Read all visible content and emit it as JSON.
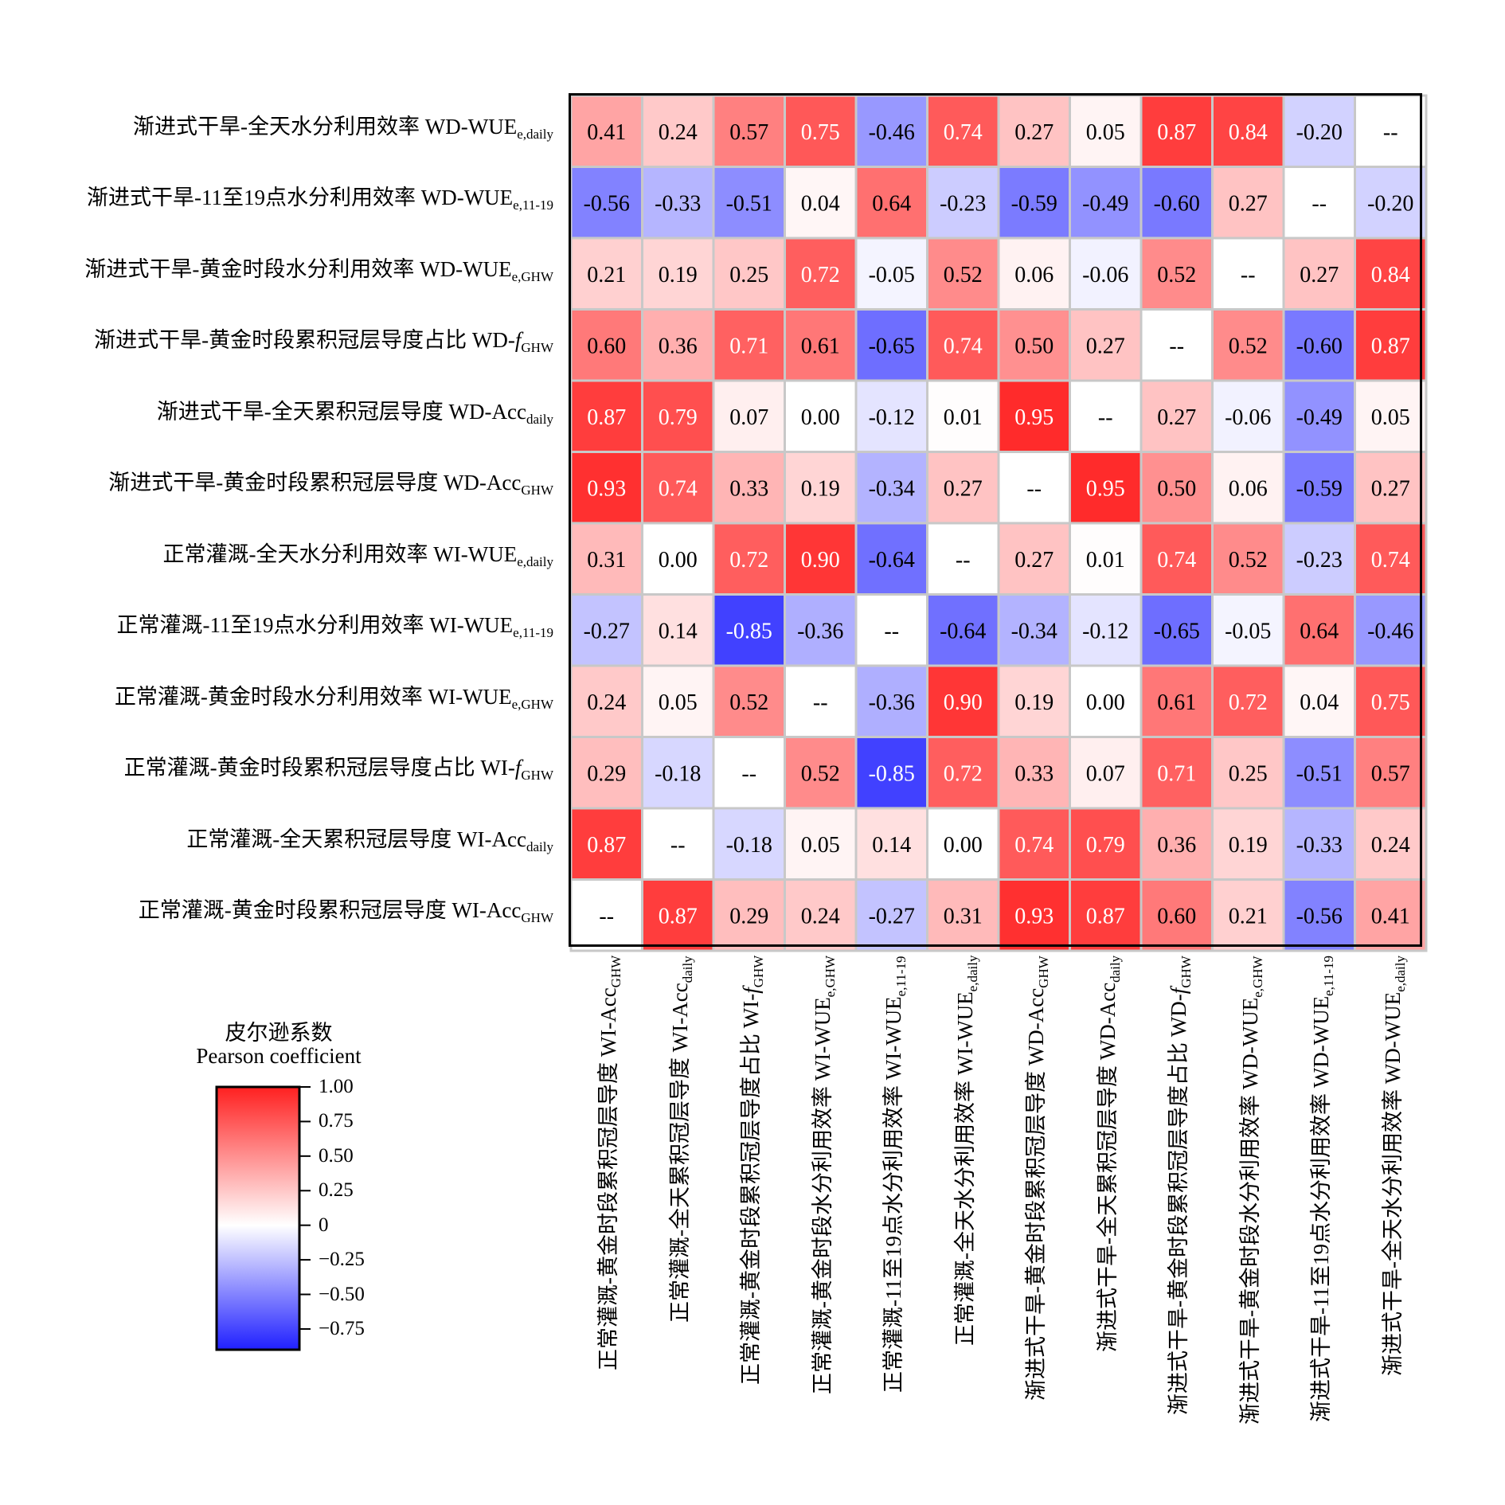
{
  "chart_data": {
    "type": "heatmap",
    "colorbar": {
      "title_cn": "皮尔逊系数",
      "title_en": "Pearson coefficient",
      "range": [
        -0.9,
        1.0
      ],
      "colors": {
        "negative": "#2020ff",
        "zero": "#ffffff",
        "positive": "#ff2020"
      },
      "ticks": [
        {
          "value": 1.0,
          "label": "1.00"
        },
        {
          "value": 0.75,
          "label": "0.75"
        },
        {
          "value": 0.5,
          "label": "0.50"
        },
        {
          "value": 0.25,
          "label": "0.25"
        },
        {
          "value": 0.0,
          "label": "0"
        },
        {
          "value": -0.25,
          "label": "−0.25"
        },
        {
          "value": -0.5,
          "label": "−0.50"
        },
        {
          "value": -0.75,
          "label": "−0.75"
        }
      ]
    },
    "rows": [
      {
        "cn": "渐进式干旱-全天水分利用效率 WD-",
        "main": "WUE",
        "sub": "e,daily"
      },
      {
        "cn": "渐进式干旱-11至19点水分利用效率 WD-",
        "main": "WUE",
        "sub": "e,11-19"
      },
      {
        "cn": "渐进式干旱-黄金时段水分利用效率 WD-",
        "main": "WUE",
        "sub": "e,GHW"
      },
      {
        "cn": "渐进式干旱-黄金时段累积冠层导度占比 WD-",
        "main": "f",
        "italic": true,
        "sub": "GHW"
      },
      {
        "cn": "渐进式干旱-全天累积冠层导度 WD-",
        "main": "Acc",
        "sub": "daily"
      },
      {
        "cn": "渐进式干旱-黄金时段累积冠层导度 WD-",
        "main": "Acc",
        "sub": "GHW"
      },
      {
        "cn": "正常灌溉-全天水分利用效率 WI-",
        "main": "WUE",
        "sub": "e,daily"
      },
      {
        "cn": "正常灌溉-11至19点水分利用效率 WI-",
        "main": "WUE",
        "sub": "e,11-19"
      },
      {
        "cn": "正常灌溉-黄金时段水分利用效率 WI-",
        "main": "WUE",
        "sub": "e,GHW"
      },
      {
        "cn": "正常灌溉-黄金时段累积冠层导度占比 WI-",
        "main": "f",
        "italic": true,
        "sub": "GHW"
      },
      {
        "cn": "正常灌溉-全天累积冠层导度 WI-",
        "main": "Acc",
        "sub": "daily"
      },
      {
        "cn": "正常灌溉-黄金时段累积冠层导度 WI-",
        "main": "Acc",
        "sub": "GHW"
      }
    ],
    "columns": [
      {
        "cn": "正常灌溉-黄金时段累积冠层导度 WI-",
        "main": "Acc",
        "sub": "GHW"
      },
      {
        "cn": "正常灌溉-全天累积冠层导度 WI-",
        "main": "Acc",
        "sub": "daily"
      },
      {
        "cn": "正常灌溉-黄金时段累积冠层导度占比 WI-",
        "main": "f",
        "italic": true,
        "sub": "GHW"
      },
      {
        "cn": "正常灌溉-黄金时段水分利用效率 WI-",
        "main": "WUE",
        "sub": "e,GHW"
      },
      {
        "cn": "正常灌溉-11至19点水分利用效率 WI-",
        "main": "WUE",
        "sub": "e,11-19"
      },
      {
        "cn": "正常灌溉-全天水分利用效率 WI-",
        "main": "WUE",
        "sub": "e,daily"
      },
      {
        "cn": "渐进式干旱-黄金时段累积冠层导度 WD-",
        "main": "Acc",
        "sub": "GHW"
      },
      {
        "cn": "渐进式干旱-全天累积冠层导度 WD-",
        "main": "Acc",
        "sub": "daily"
      },
      {
        "cn": "渐进式干旱-黄金时段累积冠层导度占比 WD-",
        "main": "f",
        "italic": true,
        "sub": "GHW"
      },
      {
        "cn": "渐进式干旱-黄金时段水分利用效率 WD-",
        "main": "WUE",
        "sub": "e,GHW"
      },
      {
        "cn": "渐进式干旱-11至19点水分利用效率 WD-",
        "main": "WUE",
        "sub": "e,11-19"
      },
      {
        "cn": "渐进式干旱-全天水分利用效率 WD-",
        "main": "WUE",
        "sub": "e,daily"
      }
    ],
    "missing_label": "--",
    "values": [
      [
        0.41,
        0.24,
        0.57,
        0.75,
        -0.46,
        0.74,
        0.27,
        0.05,
        0.87,
        0.84,
        -0.2,
        null
      ],
      [
        -0.56,
        -0.33,
        -0.51,
        0.04,
        0.64,
        -0.23,
        -0.59,
        -0.49,
        -0.6,
        0.27,
        null,
        -0.2
      ],
      [
        0.21,
        0.19,
        0.25,
        0.72,
        -0.05,
        0.52,
        0.06,
        -0.06,
        0.52,
        null,
        0.27,
        0.84
      ],
      [
        0.6,
        0.36,
        0.71,
        0.61,
        -0.65,
        0.74,
        0.5,
        0.27,
        null,
        0.52,
        -0.6,
        0.87
      ],
      [
        0.87,
        0.79,
        0.07,
        -0.0,
        -0.12,
        0.01,
        0.95,
        null,
        0.27,
        -0.06,
        -0.49,
        0.05
      ],
      [
        0.93,
        0.74,
        0.33,
        0.19,
        -0.34,
        0.27,
        null,
        0.95,
        0.5,
        0.06,
        -0.59,
        0.27
      ],
      [
        0.31,
        0.0,
        0.72,
        0.9,
        -0.64,
        null,
        0.27,
        0.01,
        0.74,
        0.52,
        -0.23,
        0.74
      ],
      [
        -0.27,
        0.14,
        -0.85,
        -0.36,
        null,
        -0.64,
        -0.34,
        -0.12,
        -0.65,
        -0.05,
        0.64,
        -0.46
      ],
      [
        0.24,
        0.05,
        0.52,
        null,
        -0.36,
        0.9,
        0.19,
        -0.0,
        0.61,
        0.72,
        0.04,
        0.75
      ],
      [
        0.29,
        -0.18,
        null,
        0.52,
        -0.85,
        0.72,
        0.33,
        0.07,
        0.71,
        0.25,
        -0.51,
        0.57
      ],
      [
        0.87,
        null,
        -0.18,
        0.05,
        0.14,
        0.0,
        0.74,
        0.79,
        0.36,
        0.19,
        -0.33,
        0.24
      ],
      [
        null,
        0.87,
        0.29,
        0.24,
        -0.27,
        0.31,
        0.93,
        0.87,
        0.6,
        0.21,
        -0.56,
        0.41
      ]
    ]
  }
}
